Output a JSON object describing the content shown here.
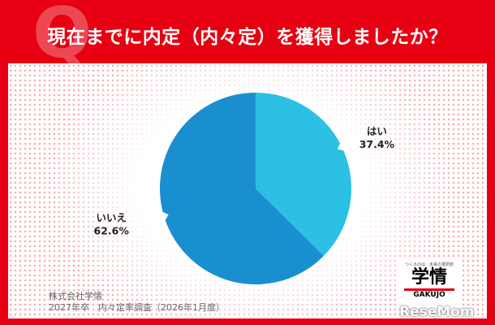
{
  "header": {
    "badge": "Q",
    "title": "現在までに内定（内々定）を獲得しましたか？"
  },
  "chart_data": {
    "type": "pie",
    "title": "現在までに内定（内々定）を獲得しましたか？",
    "slices": [
      {
        "label": "はい",
        "value": 37.4,
        "value_label": "37.4%",
        "color": "#2bc0e4"
      },
      {
        "label": "いいえ",
        "value": 62.6,
        "value_label": "62.6%",
        "color": "#1a8fd0"
      }
    ]
  },
  "source": {
    "line1": "株式会社学情",
    "line2": "2027年卒　内々定率調査（2026年1月度）"
  },
  "logo": {
    "tagline": "つくるのは、未来の選択肢",
    "name": "学情",
    "latin": "GAKUJO"
  },
  "watermark": "ReseMom"
}
